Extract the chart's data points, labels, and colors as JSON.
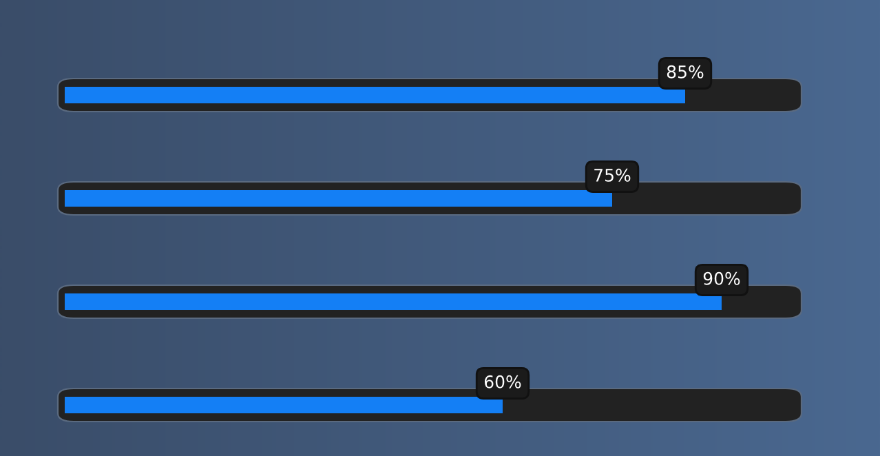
{
  "chart_data": {
    "type": "bar",
    "orientation": "horizontal",
    "categories": [
      null,
      null,
      null,
      null
    ],
    "values": [
      85,
      75,
      90,
      60
    ],
    "value_labels": [
      "85%",
      "75%",
      "90%",
      "60%"
    ],
    "color": "#147ff5"
  }
}
